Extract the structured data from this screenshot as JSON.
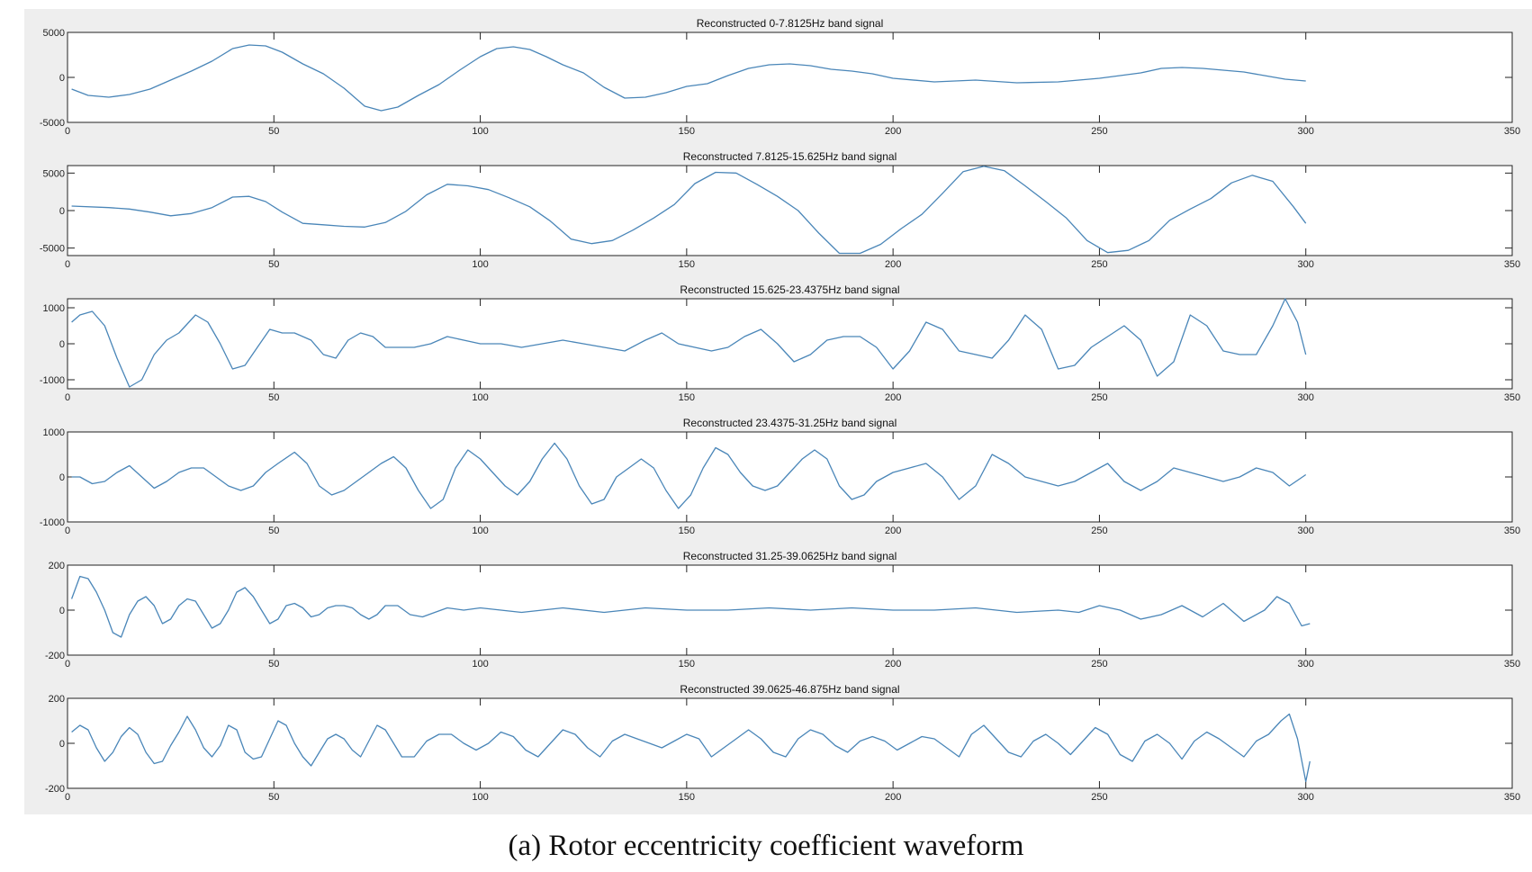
{
  "figure": {
    "caption": "(a) Rotor eccentricity coefficient waveform",
    "line_color": "#4a86b8",
    "background_color": "#eeeeee"
  },
  "chart_data": [
    {
      "type": "line",
      "title": "Reconstructed 0-7.8125Hz band signal",
      "xlim": [
        0,
        350
      ],
      "ylim": [
        -5000,
        5000
      ],
      "x_ticks": [
        0,
        50,
        100,
        150,
        200,
        250,
        300,
        350
      ],
      "y_ticks": [
        5000,
        0,
        -5000
      ],
      "grid": false,
      "series": [
        {
          "x": [
            1,
            5,
            10,
            15,
            20,
            25,
            30,
            35,
            40,
            44,
            48,
            52,
            57,
            62,
            67,
            72,
            76,
            80,
            85,
            90,
            95,
            100,
            104,
            108,
            112,
            116,
            120,
            125,
            130,
            135,
            140,
            145,
            150,
            155,
            160,
            165,
            170,
            175,
            180,
            185,
            190,
            195,
            200,
            210,
            220,
            230,
            240,
            250,
            260,
            265,
            270,
            275,
            280,
            285,
            290,
            295,
            300
          ],
          "y": [
            -1300,
            -2000,
            -2200,
            -1900,
            -1300,
            -300,
            700,
            1800,
            3200,
            3600,
            3500,
            2800,
            1500,
            400,
            -1200,
            -3200,
            -3700,
            -3300,
            -2000,
            -800,
            800,
            2300,
            3200,
            3400,
            3100,
            2300,
            1400,
            500,
            -1100,
            -2300,
            -2200,
            -1700,
            -1000,
            -700,
            200,
            1000,
            1400,
            1500,
            1300,
            900,
            700,
            400,
            -100,
            -500,
            -300,
            -600,
            -500,
            -100,
            500,
            1000,
            1100,
            1000,
            800,
            600,
            200,
            -200,
            -400
          ]
        }
      ]
    },
    {
      "type": "line",
      "title": "Reconstructed 7.8125-15.625Hz band signal",
      "xlim": [
        0,
        350
      ],
      "ylim": [
        -6000,
        6000
      ],
      "x_ticks": [
        0,
        50,
        100,
        150,
        200,
        250,
        300,
        350
      ],
      "y_ticks": [
        5000,
        0,
        -5000
      ],
      "grid": false,
      "series": [
        {
          "x": [
            1,
            10,
            15,
            20,
            25,
            30,
            35,
            40,
            44,
            48,
            52,
            57,
            62,
            67,
            72,
            77,
            82,
            87,
            92,
            97,
            102,
            107,
            112,
            117,
            122,
            127,
            132,
            137,
            142,
            147,
            152,
            157,
            162,
            167,
            172,
            177,
            182,
            187,
            192,
            197,
            202,
            207,
            212,
            217,
            222,
            227,
            232,
            237,
            242,
            247,
            252,
            257,
            262,
            267,
            272,
            277,
            282,
            287,
            292,
            297,
            300
          ],
          "y": [
            600,
            400,
            200,
            -200,
            -700,
            -400,
            400,
            1800,
            1900,
            1200,
            -200,
            -1700,
            -1900,
            -2100,
            -2200,
            -1600,
            -100,
            2100,
            3500,
            3300,
            2800,
            1700,
            500,
            -1400,
            -3800,
            -4400,
            -4000,
            -2600,
            -1000,
            800,
            3600,
            5100,
            5000,
            3500,
            1900,
            0,
            -3000,
            -5700,
            -5700,
            -4500,
            -2400,
            -500,
            2300,
            5200,
            5900,
            5300,
            3300,
            1200,
            -1000,
            -4000,
            -5600,
            -5300,
            -4000,
            -1300,
            200,
            1600,
            3700,
            4700,
            3900,
            500,
            -1700
          ]
        }
      ]
    },
    {
      "type": "line",
      "title": "Reconstructed 15.625-23.4375Hz band signal",
      "xlim": [
        0,
        350
      ],
      "ylim": [
        -1250,
        1250
      ],
      "x_ticks": [
        0,
        50,
        100,
        150,
        200,
        250,
        300,
        350
      ],
      "y_ticks": [
        1000,
        0,
        -1000
      ],
      "grid": false,
      "series": [
        {
          "x": [
            1,
            3,
            6,
            9,
            12,
            15,
            18,
            21,
            24,
            27,
            31,
            34,
            37,
            40,
            43,
            46,
            49,
            52,
            55,
            59,
            62,
            65,
            68,
            71,
            74,
            77,
            80,
            84,
            88,
            92,
            96,
            100,
            105,
            110,
            115,
            120,
            125,
            130,
            135,
            140,
            144,
            148,
            152,
            156,
            160,
            164,
            168,
            172,
            176,
            180,
            184,
            188,
            192,
            196,
            200,
            204,
            208,
            212,
            216,
            220,
            224,
            228,
            232,
            236,
            240,
            244,
            248,
            252,
            256,
            260,
            264,
            268,
            272,
            276,
            280,
            284,
            288,
            292,
            295,
            298,
            300
          ],
          "y": [
            600,
            800,
            900,
            500,
            -400,
            -1200,
            -1000,
            -300,
            100,
            300,
            800,
            600,
            0,
            -700,
            -600,
            -100,
            400,
            300,
            300,
            100,
            -300,
            -400,
            100,
            300,
            200,
            -100,
            -100,
            -100,
            0,
            200,
            100,
            0,
            0,
            -100,
            0,
            100,
            0,
            -100,
            -200,
            100,
            300,
            0,
            -100,
            -200,
            -100,
            200,
            400,
            0,
            -500,
            -300,
            100,
            200,
            200,
            -100,
            -700,
            -200,
            600,
            400,
            -200,
            -300,
            -400,
            100,
            800,
            400,
            -700,
            -600,
            -100,
            200,
            500,
            100,
            -900,
            -500,
            800,
            500,
            -200,
            -300,
            -300,
            500,
            1250,
            600,
            -300
          ]
        }
      ]
    },
    {
      "type": "line",
      "title": "Reconstructed 23.4375-31.25Hz band signal",
      "xlim": [
        0,
        350
      ],
      "ylim": [
        -1000,
        1000
      ],
      "x_ticks": [
        0,
        50,
        100,
        150,
        200,
        250,
        300,
        350
      ],
      "y_ticks": [
        1000,
        0,
        -1000
      ],
      "grid": false,
      "series": [
        {
          "x": [
            1,
            3,
            6,
            9,
            12,
            15,
            18,
            21,
            24,
            27,
            30,
            33,
            36,
            39,
            42,
            45,
            48,
            51,
            55,
            58,
            61,
            64,
            67,
            70,
            73,
            76,
            79,
            82,
            85,
            88,
            91,
            94,
            97,
            100,
            103,
            106,
            109,
            112,
            115,
            118,
            121,
            124,
            127,
            130,
            133,
            136,
            139,
            142,
            145,
            148,
            151,
            154,
            157,
            160,
            163,
            166,
            169,
            172,
            175,
            178,
            181,
            184,
            187,
            190,
            193,
            196,
            200,
            204,
            208,
            212,
            216,
            220,
            224,
            228,
            232,
            236,
            240,
            244,
            248,
            252,
            256,
            260,
            264,
            268,
            272,
            276,
            280,
            284,
            288,
            292,
            296,
            300
          ],
          "y": [
            0,
            0,
            -150,
            -100,
            100,
            250,
            0,
            -250,
            -100,
            100,
            200,
            200,
            0,
            -200,
            -300,
            -200,
            100,
            300,
            550,
            300,
            -200,
            -400,
            -300,
            -100,
            100,
            300,
            450,
            200,
            -300,
            -700,
            -500,
            200,
            600,
            400,
            100,
            -200,
            -400,
            -100,
            400,
            750,
            400,
            -200,
            -600,
            -500,
            0,
            200,
            400,
            200,
            -300,
            -700,
            -400,
            200,
            650,
            500,
            100,
            -200,
            -300,
            -200,
            100,
            400,
            600,
            400,
            -200,
            -500,
            -400,
            -100,
            100,
            200,
            300,
            0,
            -500,
            -200,
            500,
            300,
            0,
            -100,
            -200,
            -100,
            100,
            300,
            -100,
            -300,
            -100,
            200,
            100,
            0,
            -100,
            0,
            200,
            100,
            -200,
            50
          ]
        }
      ]
    },
    {
      "type": "line",
      "title": "Reconstructed 31.25-39.0625Hz band signal",
      "xlim": [
        0,
        350
      ],
      "ylim": [
        -200,
        200
      ],
      "x_ticks": [
        0,
        50,
        100,
        150,
        200,
        250,
        300,
        350
      ],
      "y_ticks": [
        200,
        0,
        -200
      ],
      "grid": false,
      "series": [
        {
          "x": [
            1,
            3,
            5,
            7,
            9,
            11,
            13,
            15,
            17,
            19,
            21,
            23,
            25,
            27,
            29,
            31,
            33,
            35,
            37,
            39,
            41,
            43,
            45,
            47,
            49,
            51,
            53,
            55,
            57,
            59,
            61,
            63,
            65,
            67,
            69,
            71,
            73,
            75,
            77,
            80,
            83,
            86,
            89,
            92,
            96,
            100,
            105,
            110,
            115,
            120,
            130,
            140,
            150,
            160,
            170,
            180,
            190,
            200,
            210,
            220,
            230,
            240,
            245,
            250,
            255,
            260,
            265,
            270,
            275,
            280,
            285,
            290,
            293,
            296,
            299,
            301
          ],
          "y": [
            50,
            150,
            140,
            80,
            0,
            -100,
            -120,
            -20,
            40,
            60,
            20,
            -60,
            -40,
            20,
            50,
            40,
            -20,
            -80,
            -60,
            0,
            80,
            100,
            60,
            0,
            -60,
            -40,
            20,
            30,
            10,
            -30,
            -20,
            10,
            20,
            20,
            10,
            -20,
            -40,
            -20,
            20,
            20,
            -20,
            -30,
            -10,
            10,
            0,
            10,
            0,
            -10,
            0,
            10,
            -10,
            10,
            0,
            0,
            10,
            0,
            10,
            0,
            0,
            10,
            -10,
            0,
            -10,
            20,
            0,
            -40,
            -20,
            20,
            -30,
            30,
            -50,
            0,
            60,
            30,
            -70,
            -60
          ]
        }
      ]
    },
    {
      "type": "line",
      "title": "Reconstructed 39.0625-46.875Hz band signal",
      "xlim": [
        0,
        350
      ],
      "ylim": [
        -200,
        200
      ],
      "x_ticks": [
        0,
        50,
        100,
        150,
        200,
        250,
        300,
        350
      ],
      "y_ticks": [
        200,
        0,
        -200
      ],
      "grid": false,
      "series": [
        {
          "x": [
            1,
            3,
            5,
            7,
            9,
            11,
            13,
            15,
            17,
            19,
            21,
            23,
            25,
            27,
            29,
            31,
            33,
            35,
            37,
            39,
            41,
            43,
            45,
            47,
            49,
            51,
            53,
            55,
            57,
            59,
            61,
            63,
            65,
            67,
            69,
            71,
            73,
            75,
            77,
            79,
            81,
            84,
            87,
            90,
            93,
            96,
            99,
            102,
            105,
            108,
            111,
            114,
            117,
            120,
            123,
            126,
            129,
            132,
            135,
            138,
            141,
            144,
            147,
            150,
            153,
            156,
            159,
            162,
            165,
            168,
            171,
            174,
            177,
            180,
            183,
            186,
            189,
            192,
            195,
            198,
            201,
            204,
            207,
            210,
            213,
            216,
            219,
            222,
            225,
            228,
            231,
            234,
            237,
            240,
            243,
            246,
            249,
            252,
            255,
            258,
            261,
            264,
            267,
            270,
            273,
            276,
            279,
            282,
            285,
            288,
            291,
            294,
            296,
            298,
            300,
            301
          ],
          "y": [
            50,
            80,
            60,
            -20,
            -80,
            -40,
            30,
            70,
            40,
            -40,
            -90,
            -80,
            -10,
            50,
            120,
            60,
            -20,
            -60,
            -10,
            80,
            60,
            -40,
            -70,
            -60,
            20,
            100,
            80,
            0,
            -60,
            -100,
            -40,
            20,
            40,
            20,
            -30,
            -60,
            10,
            80,
            60,
            0,
            -60,
            -60,
            10,
            40,
            40,
            0,
            -30,
            0,
            50,
            30,
            -30,
            -60,
            0,
            60,
            40,
            -20,
            -60,
            10,
            40,
            20,
            0,
            -20,
            10,
            40,
            20,
            -60,
            -20,
            20,
            60,
            20,
            -40,
            -60,
            20,
            60,
            40,
            -10,
            -40,
            10,
            30,
            10,
            -30,
            0,
            30,
            20,
            -20,
            -60,
            40,
            80,
            20,
            -40,
            -60,
            10,
            40,
            0,
            -50,
            10,
            70,
            40,
            -50,
            -80,
            10,
            40,
            0,
            -70,
            10,
            50,
            20,
            -20,
            -60,
            10,
            40,
            100,
            130,
            20,
            -170,
            -80
          ]
        }
      ]
    }
  ]
}
